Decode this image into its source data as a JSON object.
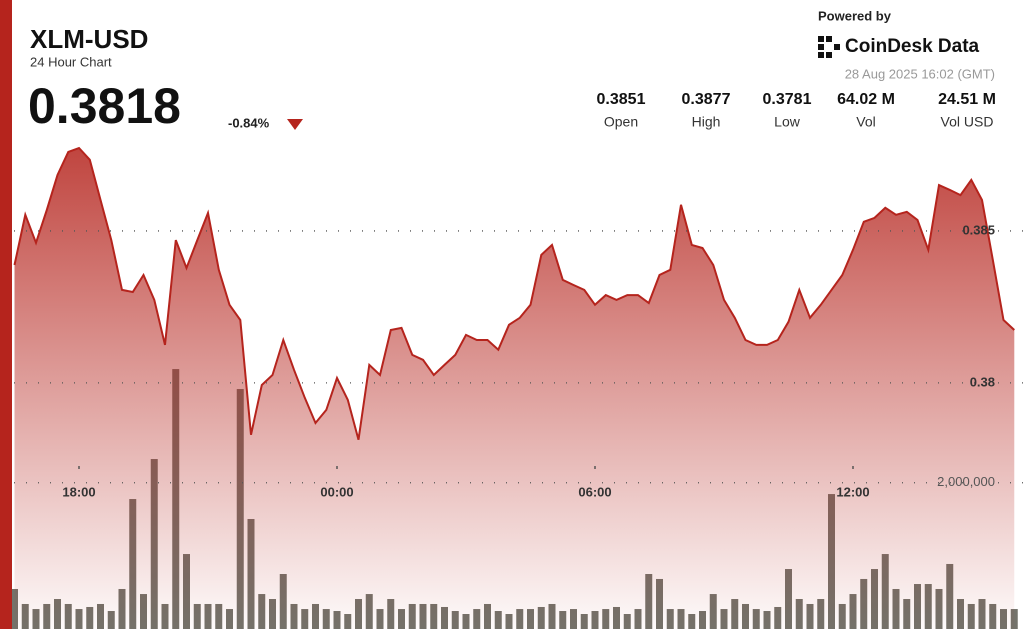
{
  "header": {
    "symbol": "XLM-USD",
    "subtitle": "24 Hour Chart",
    "price": "0.3818",
    "change": "-0.84%",
    "powered_by": "Powered by",
    "brand": "CoinDesk Data",
    "timestamp": "28 Aug 2025 16:02 (GMT)"
  },
  "stats": [
    {
      "value": "0.3851",
      "label": "Open"
    },
    {
      "value": "0.3877",
      "label": "High"
    },
    {
      "value": "0.3781",
      "label": "Low"
    },
    {
      "value": "64.02 M",
      "label": "Vol"
    },
    {
      "value": "24.51 M",
      "label": "Vol USD"
    }
  ],
  "chart_data": {
    "type": "line",
    "categories": [
      null,
      null,
      null,
      null,
      null,
      null,
      "18:00",
      null,
      null,
      null,
      null,
      null,
      null,
      null,
      null,
      null,
      null,
      null,
      null,
      null,
      null,
      null,
      null,
      null,
      null,
      null,
      null,
      null,
      null,
      null,
      "00:00",
      null,
      null,
      null,
      null,
      null,
      null,
      null,
      null,
      null,
      null,
      null,
      null,
      null,
      null,
      null,
      null,
      null,
      null,
      null,
      null,
      null,
      null,
      null,
      "06:00",
      null,
      null,
      null,
      null,
      null,
      null,
      null,
      null,
      null,
      null,
      null,
      null,
      null,
      null,
      null,
      null,
      null,
      null,
      null,
      null,
      null,
      null,
      null,
      "12:00",
      null,
      null,
      null,
      null,
      null,
      null,
      null,
      null,
      null,
      null,
      null,
      null,
      null,
      null,
      null
    ],
    "series": [
      {
        "color": "#b5241d",
        "values": [
          0.38388,
          0.38553,
          0.38461,
          0.38569,
          0.38684,
          0.3876,
          0.38773,
          0.38734,
          0.38602,
          0.3847,
          0.38306,
          0.38299,
          0.38355,
          0.38273,
          0.38125,
          0.3847,
          0.38378,
          0.3847,
          0.38559,
          0.38372,
          0.38257,
          0.38207,
          0.37829,
          0.37993,
          0.38026,
          0.38141,
          0.38043,
          0.37951,
          0.37868,
          0.37911,
          0.38016,
          0.37944,
          0.37813,
          0.38059,
          0.38026,
          0.38174,
          0.38181,
          0.38092,
          0.38076,
          0.38026,
          0.38059,
          0.38092,
          0.38158,
          0.38141,
          0.38141,
          0.38109,
          0.38191,
          0.38214,
          0.38257,
          0.38421,
          0.38454,
          0.38339,
          0.38322,
          0.38306,
          0.38257,
          0.38289,
          0.38273,
          0.38289,
          0.38289,
          0.38263,
          0.38355,
          0.38372,
          0.38586,
          0.38454,
          0.38444,
          0.38388,
          0.38273,
          0.38214,
          0.38141,
          0.38125,
          0.38125,
          0.38141,
          0.38201,
          0.38306,
          0.38214,
          0.38257,
          0.38306,
          0.38355,
          0.38438,
          0.3853,
          0.38543,
          0.38576,
          0.38553,
          0.38563,
          0.38536,
          0.38438,
          0.38651,
          0.38635,
          0.38618,
          0.38668,
          0.38602,
          0.38405,
          0.38207,
          0.38174
        ]
      },
      {
        "type": "bar",
        "axis": "y2",
        "color": "#6b6b63",
        "values": [
          547000,
          342000,
          273000,
          342000,
          410000,
          342000,
          273000,
          301000,
          342000,
          246000,
          547000,
          1777000,
          478000,
          2324000,
          342000,
          3554000,
          1025000,
          342000,
          342000,
          342000,
          273000,
          3281000,
          1504000,
          478000,
          410000,
          752000,
          342000,
          273000,
          342000,
          273000,
          246000,
          205000,
          410000,
          478000,
          273000,
          410000,
          273000,
          342000,
          342000,
          342000,
          301000,
          246000,
          205000,
          273000,
          342000,
          246000,
          205000,
          273000,
          273000,
          301000,
          342000,
          246000,
          273000,
          205000,
          246000,
          273000,
          301000,
          205000,
          273000,
          752000,
          684000,
          273000,
          273000,
          205000,
          246000,
          478000,
          273000,
          410000,
          342000,
          273000,
          246000,
          301000,
          820000,
          410000,
          342000,
          410000,
          1845000,
          342000,
          478000,
          684000,
          820000,
          1025000,
          547000,
          410000,
          615000,
          615000,
          547000,
          889000,
          410000,
          342000,
          410000,
          342000,
          273000,
          273000
        ]
      }
    ],
    "ylim": [
      0.3719,
      0.3926
    ],
    "yticks": [
      0.385,
      0.38
    ],
    "y2lim": [
      0,
      8600000
    ],
    "y2ticks": [
      {
        "value": 2000000,
        "label": "2,000,000"
      }
    ],
    "grid": true
  }
}
